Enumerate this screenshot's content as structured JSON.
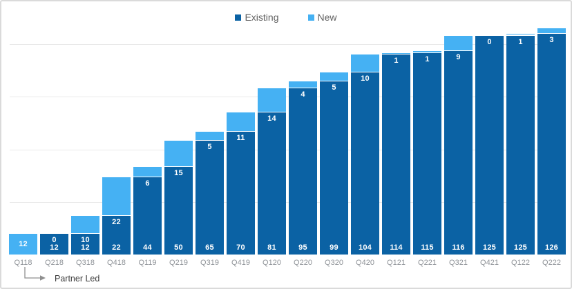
{
  "chart_data": {
    "type": "bar",
    "variant": "stacked",
    "title": "",
    "xlabel": "",
    "ylabel": "",
    "categories": [
      "Q118",
      "Q218",
      "Q318",
      "Q418",
      "Q119",
      "Q219",
      "Q319",
      "Q419",
      "Q120",
      "Q220",
      "Q320",
      "Q420",
      "Q121",
      "Q221",
      "Q321",
      "Q421",
      "Q122",
      "Q222"
    ],
    "series": [
      {
        "name": "Existing",
        "color": "#0b62a4",
        "values": [
          0,
          12,
          12,
          22,
          44,
          50,
          65,
          70,
          81,
          95,
          99,
          104,
          114,
          115,
          116,
          125,
          125,
          126
        ]
      },
      {
        "name": "New",
        "color": "#45b1f3",
        "values": [
          12,
          0,
          10,
          22,
          6,
          15,
          5,
          11,
          14,
          4,
          5,
          10,
          1,
          1,
          9,
          0,
          1,
          3
        ]
      }
    ],
    "ylim": [
      0,
      144
    ],
    "gridline_values": [
      30,
      60,
      90,
      120
    ],
    "gridlines_visible": true,
    "y_axis_labels_visible": false,
    "legend_position": "top-center",
    "data_labels": "inside-white"
  },
  "annotation": {
    "text": "Partner Led",
    "target_category": "Q118"
  },
  "colors": {
    "background": "#ffffff",
    "border": "#dadada",
    "gridline": "#e9e9e9",
    "axis_label": "#8f9398",
    "annotation_text": "#3b3b3b",
    "annotation_arrow": "#8f8f8f",
    "bar_label": "#ffffff"
  }
}
